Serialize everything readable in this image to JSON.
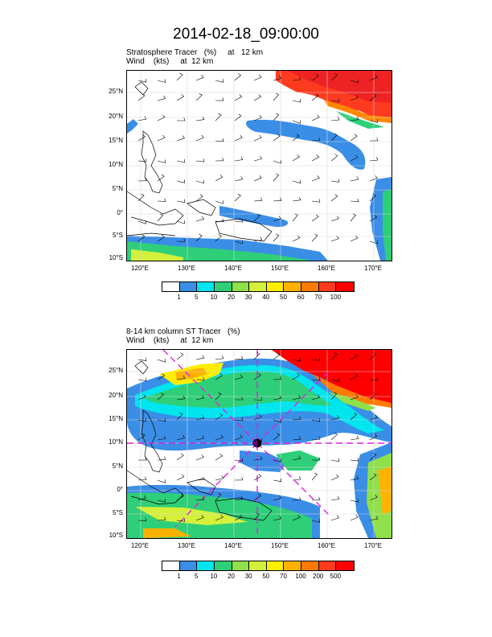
{
  "figure_title": "2014-02-18_09:00:00",
  "panels": [
    {
      "title_line1": "Stratosphere Tracer   (%)     at   12 km",
      "title_line2": "Wind    (kts)     at  12 km",
      "lat_labels": [
        "25°N",
        "20°N",
        "15°N",
        "10°N",
        "5°N",
        "0°",
        "5°S",
        "10°S"
      ],
      "lon_labels": [
        "120°E",
        "130°E",
        "140°E",
        "150°E",
        "160°E",
        "170°E"
      ],
      "colorbar_labels": [
        "1",
        "5",
        "10",
        "20",
        "30",
        "40",
        "50",
        "60",
        "70",
        "100"
      ],
      "colorbar_colors": [
        "#ffffff",
        "#3a8ee6",
        "#00e5ee",
        "#2ecf78",
        "#8fe04a",
        "#d4f03a",
        "#ffee00",
        "#ffb300",
        "#ff7a00",
        "#ff3b1f",
        "#ff0000"
      ]
    },
    {
      "title_line1": "8-14 km column ST Tracer   (%)",
      "title_line2": "Wind    (kts)     at  12 km",
      "lat_labels": [
        "25°N",
        "20°N",
        "15°N",
        "10°N",
        "5°N",
        "0°",
        "5°S",
        "10°S"
      ],
      "lon_labels": [
        "120°E",
        "130°E",
        "140°E",
        "150°E",
        "160°E",
        "170°E"
      ],
      "colorbar_labels": [
        "1",
        "5",
        "10",
        "20",
        "30",
        "50",
        "70",
        "100",
        "200",
        "500"
      ],
      "colorbar_colors": [
        "#ffffff",
        "#3a8ee6",
        "#00e5ee",
        "#2ecf78",
        "#8fe04a",
        "#d4f03a",
        "#ffee00",
        "#ffb300",
        "#ff7a00",
        "#ff3b1f",
        "#ff0000"
      ]
    }
  ]
}
